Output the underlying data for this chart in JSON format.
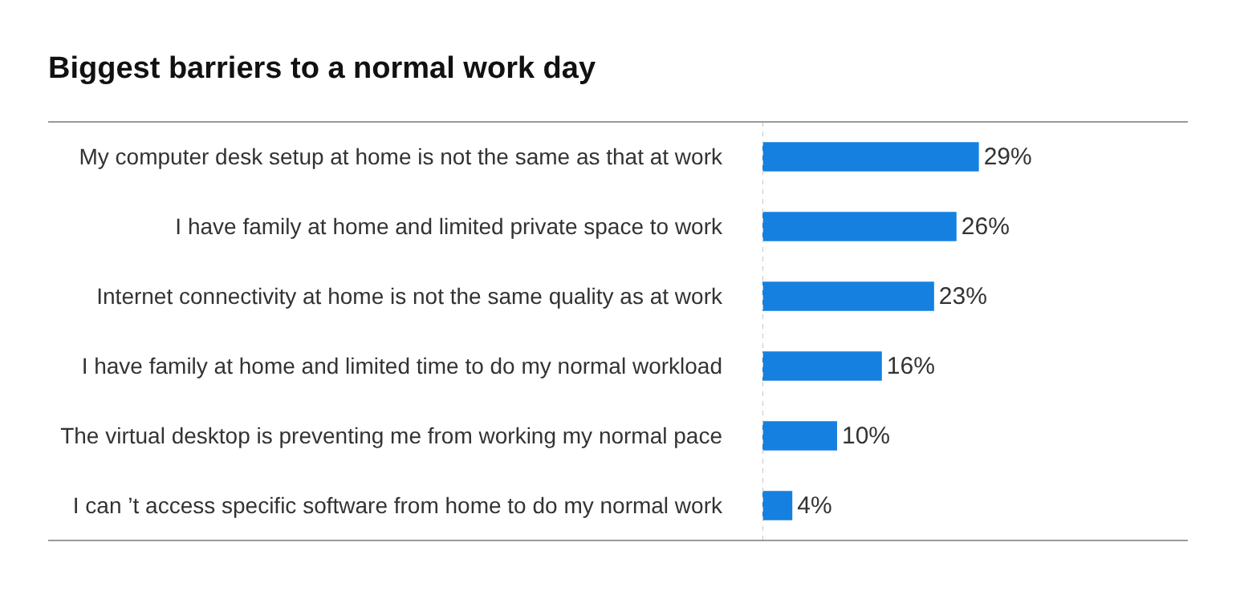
{
  "chart_data": {
    "type": "bar",
    "orientation": "horizontal",
    "title": "Biggest barriers to a normal work day",
    "categories": [
      "My computer desk setup at home is not the same as that at work",
      "I have family at home and limited private space to work",
      "Internet connectivity at home is not the same quality as at work",
      "I have family at home and limited time to do my normal workload",
      "The virtual desktop is preventing me from working my normal pace",
      "I can ’t access specific software from home to do my normal work"
    ],
    "values": [
      29,
      26,
      23,
      16,
      10,
      4
    ],
    "value_labels": [
      "29%",
      "26%",
      "23%",
      "16%",
      "10%",
      "4%"
    ],
    "color": "#1580e0",
    "xlim": [
      0,
      57
    ],
    "tick_labels": "y",
    "legend": false,
    "ref_lines": [
      {
        "axis": "x",
        "value": 0,
        "color": "#c8c8c8",
        "line_style": "dotted"
      }
    ]
  }
}
